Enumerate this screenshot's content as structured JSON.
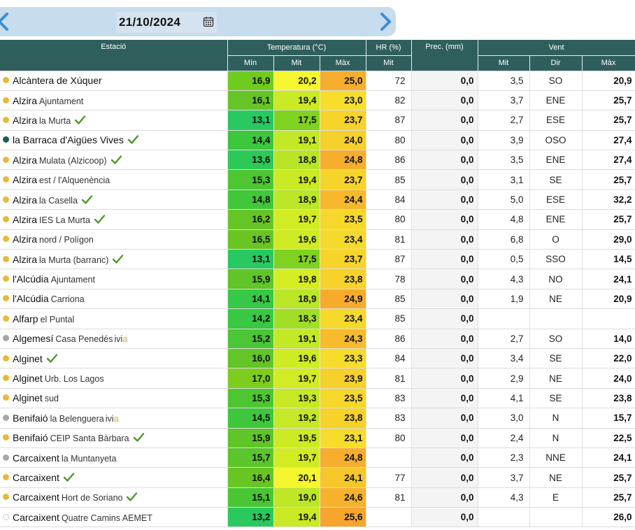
{
  "date": "21/10/2024",
  "icons": {
    "prev": "chevron-left-icon",
    "next": "chevron-right-icon",
    "calendar": "calendar-icon",
    "check": "checkmark-icon"
  },
  "colors": {
    "header": "#2f5f5c",
    "dot_orange": "#e8b93a",
    "dot_teal": "#1c5d5a",
    "dot_gray": "#a8a8a8",
    "check": "#4a9a2a"
  },
  "headers": {
    "station": "Estació",
    "temperature": "Temperatura (°C)",
    "hr": "HR (%)",
    "prec": "Prec. (mm)",
    "wind": "Vent",
    "t_min": "Mín",
    "t_mit": "Mit",
    "t_max": "Màx",
    "hr_mit": "Mit",
    "w_mit": "Mit",
    "w_dir": "Dir",
    "w_max": "Màx"
  },
  "rows": [
    {
      "name": "Alcàntera de Xúquer",
      "sub": "",
      "dot": "orange",
      "check": false,
      "ivia": false,
      "tmin": "16,9",
      "tmit": "20,2",
      "tmax": "25,0",
      "hr": "72",
      "prec": "0,0",
      "wmit": "3,5",
      "wdir": "SO",
      "wmax": "20,9",
      "cmin": "#6fcc1e",
      "cmit": "#f6f730",
      "cmax": "#f7ad2d"
    },
    {
      "name": "Alzira",
      "sub": "Ajuntament",
      "dot": "orange",
      "check": false,
      "ivia": false,
      "tmin": "16,1",
      "tmit": "19,4",
      "tmax": "23,0",
      "hr": "82",
      "prec": "0,0",
      "wmit": "3,7",
      "wdir": "ENE",
      "wmax": "25,7",
      "cmin": "#66c526",
      "cmit": "#c9ea24",
      "cmax": "#f7de2c"
    },
    {
      "name": "Alzira",
      "sub": "la Murta",
      "dot": "orange",
      "check": true,
      "ivia": false,
      "tmin": "13,1",
      "tmit": "17,5",
      "tmax": "23,7",
      "hr": "87",
      "prec": "0,0",
      "wmit": "2,7",
      "wdir": "ESE",
      "wmax": "25,7",
      "cmin": "#28c960",
      "cmit": "#7fd21f",
      "cmax": "#f6d42a"
    },
    {
      "name": "la Barraca d'Aigües Vives",
      "sub": "",
      "dot": "teal",
      "check": true,
      "ivia": false,
      "tmin": "14,4",
      "tmit": "19,1",
      "tmax": "24,0",
      "hr": "80",
      "prec": "0,0",
      "wmit": "3,9",
      "wdir": "OSO",
      "wmax": "27,4",
      "cmin": "#3cc73d",
      "cmit": "#c3e826",
      "cmax": "#f6d02b"
    },
    {
      "name": "Alzira",
      "sub": "Mulata (Alzicoop)",
      "dot": "orange",
      "check": true,
      "ivia": false,
      "tmin": "13,6",
      "tmit": "18,8",
      "tmax": "24,8",
      "hr": "86",
      "prec": "0,0",
      "wmit": "3,5",
      "wdir": "ENE",
      "wmax": "27,4",
      "cmin": "#2cc956",
      "cmit": "#b9e527",
      "cmax": "#f7ae2d"
    },
    {
      "name": "Alzira",
      "sub": "est / l'Alquenència",
      "dot": "orange",
      "check": false,
      "ivia": false,
      "tmin": "15,3",
      "tmit": "19,4",
      "tmax": "23,7",
      "hr": "85",
      "prec": "0,0",
      "wmit": "3,1",
      "wdir": "SE",
      "wmax": "25,7",
      "cmin": "#4dc632",
      "cmit": "#c9ea24",
      "cmax": "#f6d42a"
    },
    {
      "name": "Alzira",
      "sub": "la Casella",
      "dot": "orange",
      "check": true,
      "ivia": false,
      "tmin": "14,8",
      "tmit": "18,9",
      "tmax": "24,4",
      "hr": "84",
      "prec": "0,0",
      "wmit": "5,0",
      "wdir": "ESE",
      "wmax": "32,2",
      "cmin": "#42c73a",
      "cmit": "#bbe627",
      "cmax": "#f7b82c"
    },
    {
      "name": "Alzira",
      "sub": "IES La Murta",
      "dot": "orange",
      "check": true,
      "ivia": false,
      "tmin": "16,2",
      "tmit": "19,7",
      "tmax": "23,5",
      "hr": "80",
      "prec": "0,0",
      "wmit": "4,8",
      "wdir": "ENE",
      "wmax": "25,7",
      "cmin": "#66c526",
      "cmit": "#d2ec23",
      "cmax": "#f6d82b"
    },
    {
      "name": "Alzira",
      "sub": "nord / Polígon",
      "dot": "orange",
      "check": false,
      "ivia": false,
      "tmin": "16,5",
      "tmit": "19,6",
      "tmax": "23,4",
      "hr": "81",
      "prec": "0,0",
      "wmit": "6,8",
      "wdir": "O",
      "wmax": "29,0",
      "cmin": "#6ac523",
      "cmit": "#cfeb23",
      "cmax": "#f6da2b"
    },
    {
      "name": "Alzira",
      "sub": "la Murta (barranc)",
      "dot": "orange",
      "check": true,
      "ivia": false,
      "tmin": "13,1",
      "tmit": "17,5",
      "tmax": "23,7",
      "hr": "87",
      "prec": "0,0",
      "wmit": "0,5",
      "wdir": "SSO",
      "wmax": "14,5",
      "cmin": "#28c960",
      "cmit": "#7fd21f",
      "cmax": "#f6d42a"
    },
    {
      "name": "l'Alcúdia",
      "sub": "Ajuntament",
      "dot": "orange",
      "check": false,
      "ivia": false,
      "tmin": "15,9",
      "tmit": "19,8",
      "tmax": "23,8",
      "hr": "78",
      "prec": "0,0",
      "wmit": "4,3",
      "wdir": "NO",
      "wmax": "24,1",
      "cmin": "#60c528",
      "cmit": "#d6ed23",
      "cmax": "#f6d22a"
    },
    {
      "name": "l'Alcúdia",
      "sub": "Carriona",
      "dot": "orange",
      "check": false,
      "ivia": false,
      "tmin": "14,1",
      "tmit": "18,9",
      "tmax": "24,9",
      "hr": "85",
      "prec": "0,0",
      "wmit": "1,9",
      "wdir": "NE",
      "wmax": "20,9",
      "cmin": "#36c846",
      "cmit": "#bbe627",
      "cmax": "#f7ab2d"
    },
    {
      "name": "Alfarp",
      "sub": "el Puntal",
      "dot": "orange",
      "check": false,
      "ivia": false,
      "tmin": "14,2",
      "tmit": "18,3",
      "tmax": "23,4",
      "hr": "85",
      "prec": "0,0",
      "wmit": "",
      "wdir": "",
      "wmax": "",
      "cmin": "#38c843",
      "cmit": "#a2de25",
      "cmax": "#f6da2b"
    },
    {
      "name": "Algemesí",
      "sub": "Casa Penedés",
      "dot": "gray",
      "check": false,
      "ivia": true,
      "tmin": "15,2",
      "tmit": "19,1",
      "tmax": "24,3",
      "hr": "86",
      "prec": "0,0",
      "wmit": "2,7",
      "wdir": "SO",
      "wmax": "14,0",
      "cmin": "#4bc634",
      "cmit": "#c3e826",
      "cmax": "#f7bb2c"
    },
    {
      "name": "Alginet",
      "sub": "",
      "dot": "orange",
      "check": true,
      "ivia": false,
      "tmin": "16,0",
      "tmit": "19,6",
      "tmax": "23,3",
      "hr": "84",
      "prec": "0,0",
      "wmit": "3,4",
      "wdir": "SE",
      "wmax": "22,0",
      "cmin": "#63c527",
      "cmit": "#cfeb23",
      "cmax": "#f6dc2b"
    },
    {
      "name": "Alginet",
      "sub": "Urb. Los Lagos",
      "dot": "orange",
      "check": false,
      "ivia": false,
      "tmin": "17,0",
      "tmit": "19,7",
      "tmax": "23,9",
      "hr": "81",
      "prec": "0,0",
      "wmit": "2,9",
      "wdir": "NE",
      "wmax": "24,0",
      "cmin": "#7ccd1e",
      "cmit": "#d2ec23",
      "cmax": "#f6d02b"
    },
    {
      "name": "Alginet",
      "sub": "sud",
      "dot": "orange",
      "check": false,
      "ivia": false,
      "tmin": "15,3",
      "tmit": "19,3",
      "tmax": "23,5",
      "hr": "83",
      "prec": "0,0",
      "wmit": "4,1",
      "wdir": "SE",
      "wmax": "23,8",
      "cmin": "#4dc632",
      "cmit": "#c7e925",
      "cmax": "#f6d82b"
    },
    {
      "name": "Benifaió",
      "sub": "la Belenguera",
      "dot": "gray",
      "check": false,
      "ivia": true,
      "tmin": "14,5",
      "tmit": "19,2",
      "tmax": "23,8",
      "hr": "83",
      "prec": "0,0",
      "wmit": "3,0",
      "wdir": "N",
      "wmax": "15,7",
      "cmin": "#3ec73c",
      "cmit": "#c5e926",
      "cmax": "#f6d22a"
    },
    {
      "name": "Benifaió",
      "sub": "CEIP Santa Bàrbara",
      "dot": "orange",
      "check": true,
      "ivia": false,
      "tmin": "15,9",
      "tmit": "19,5",
      "tmax": "23,1",
      "hr": "80",
      "prec": "0,0",
      "wmit": "2,4",
      "wdir": "N",
      "wmax": "22,5",
      "cmin": "#60c528",
      "cmit": "#cceb24",
      "cmax": "#f6dd2c"
    },
    {
      "name": "Carcaixent",
      "sub": "la Muntanyeta",
      "dot": "gray",
      "check": false,
      "ivia": false,
      "tmin": "15,7",
      "tmit": "19,7",
      "tmax": "24,8",
      "hr": "",
      "prec": "0,0",
      "wmit": "2,3",
      "wdir": "NNE",
      "wmax": "24,1",
      "cmin": "#5bc52b",
      "cmit": "#d2ec23",
      "cmax": "#f7ae2d"
    },
    {
      "name": "Carcaixent",
      "sub": "",
      "dot": "orange",
      "check": true,
      "ivia": false,
      "tmin": "16,4",
      "tmit": "20,1",
      "tmax": "24,1",
      "hr": "77",
      "prec": "0,0",
      "wmit": "3,7",
      "wdir": "NE",
      "wmax": "25,7",
      "cmin": "#69c524",
      "cmit": "#f4f62f",
      "cmax": "#f6c72b"
    },
    {
      "name": "Carcaixent",
      "sub": "Hort de Soriano",
      "dot": "orange",
      "check": true,
      "ivia": false,
      "tmin": "15,1",
      "tmit": "19,0",
      "tmax": "24,6",
      "hr": "81",
      "prec": "0,0",
      "wmit": "4,3",
      "wdir": "E",
      "wmax": "25,7",
      "cmin": "#4ac635",
      "cmit": "#bfe726",
      "cmax": "#f7b22d"
    },
    {
      "name": "Carcaixent",
      "sub": "Quatre Camins AEMET",
      "dot": "outline",
      "check": false,
      "ivia": false,
      "tmin": "13,2",
      "tmit": "19,4",
      "tmax": "25,6",
      "hr": "",
      "prec": "0,0",
      "wmit": "",
      "wdir": "",
      "wmax": "26,0",
      "cmin": "#29c95e",
      "cmit": "#c9ea24",
      "cmax": "#f7a52d"
    }
  ],
  "ivia_label": {
    "lead": "ivi",
    "tail": "a"
  }
}
